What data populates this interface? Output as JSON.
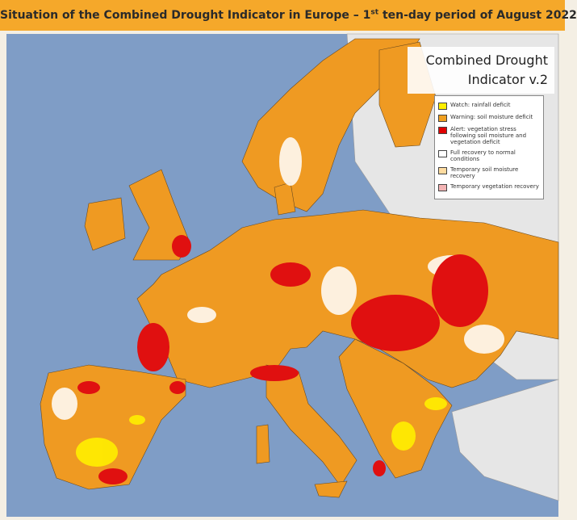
{
  "header": {
    "title": {
      "main": "Situation of the Combined Drought Indicator in Europe – 1",
      "superscript": "st",
      "rest": " ten-day period of August 2022"
    }
  },
  "map_title": {
    "line1": "Combined Drought",
    "line2": "Indicator v.2"
  },
  "legend": {
    "items": [
      {
        "label": "Watch: rainfall deficit",
        "color": "#ffef00"
      },
      {
        "label": "Warning: soil moisture deficit",
        "color": "#f0a020"
      },
      {
        "label": "Alert: vegetation stress following soil moisture and vegetation deficit",
        "color": "#e00000"
      },
      {
        "label": "Full recovery to normal conditions",
        "color": "#ffffff"
      },
      {
        "label": "Temporary soil moisture recovery",
        "color": "#ffdca0"
      },
      {
        "label": "Temporary vegetation recovery",
        "color": "#f3b4b4"
      }
    ]
  }
}
